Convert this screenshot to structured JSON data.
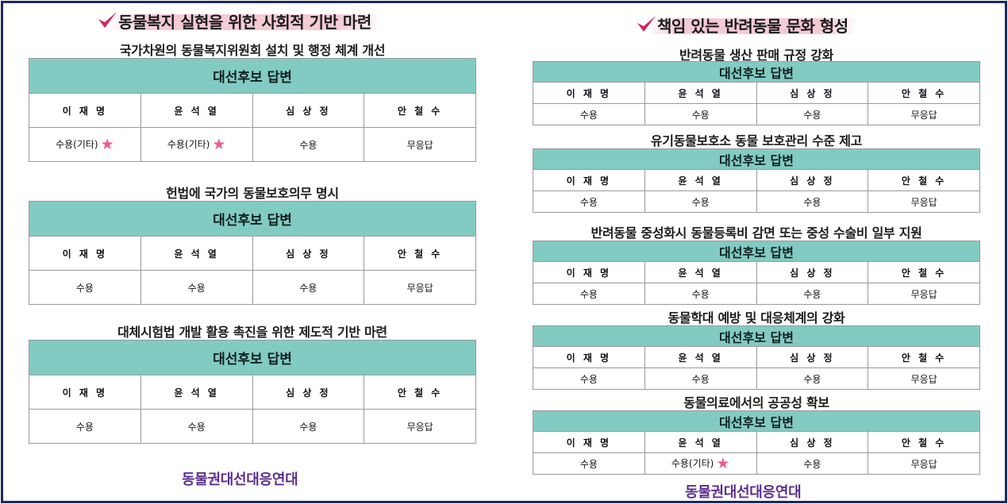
{
  "colors": {
    "header_bg": "#82cbc2",
    "star": "#ef5b8e",
    "org": "#5b2e8e",
    "border": "#1d2a55",
    "check": "#d81e5b"
  },
  "left": {
    "heading": "동물복지 실현을 위한 사회적 기반 마련",
    "sections": [
      {
        "title": "국가차원의 동물복지위원회 설치 및 행정 체계 개선",
        "header": "대선후보 답변",
        "candidates": [
          "이 재 명",
          "윤 석 열",
          "심 상 정",
          "안 철 수"
        ],
        "answers": [
          "수용(기타)",
          "수용(기타)",
          "수용",
          "무응답"
        ],
        "starred": [
          true,
          true,
          false,
          false
        ]
      },
      {
        "title": "헌법에 국가의 동물보호의무 명시",
        "header": "대선후보 답변",
        "candidates": [
          "이 재 명",
          "윤 석 열",
          "심 상 정",
          "안 철 수"
        ],
        "answers": [
          "수용",
          "수용",
          "수용",
          "무응답"
        ],
        "starred": [
          false,
          false,
          false,
          false
        ]
      },
      {
        "title": "대체시험법 개발 활용 촉진을 위한 제도적 기반 마련",
        "header": "대선후보 답변",
        "candidates": [
          "이 재 명",
          "윤 석 열",
          "심 상 정",
          "안 철 수"
        ],
        "answers": [
          "수용",
          "수용",
          "수용",
          "무응답"
        ],
        "starred": [
          false,
          false,
          false,
          false
        ]
      }
    ],
    "org": "동물권대선대응연대"
  },
  "right": {
    "heading": "책임 있는 반려동물 문화 형성",
    "sections": [
      {
        "title": "반려동물 생산 판매 규정 강화",
        "header": "대선후보 답변",
        "candidates": [
          "이 재 명",
          "윤 석 열",
          "심 상 정",
          "안 철 수"
        ],
        "answers": [
          "수용",
          "수용",
          "수용",
          "무응답"
        ],
        "starred": [
          false,
          false,
          false,
          false
        ]
      },
      {
        "title": "유기동물보호소 동물 보호관리 수준 제고",
        "header": "대선후보 답변",
        "candidates": [
          "이 재 명",
          "윤 석 열",
          "심 상 정",
          "안 철 수"
        ],
        "answers": [
          "수용",
          "수용",
          "수용",
          "무응답"
        ],
        "starred": [
          false,
          false,
          false,
          false
        ]
      },
      {
        "title": "반려동물 중성화시 동물등록비 감면 또는 중성 수술비 일부 지원",
        "header": "대선후보 답변",
        "candidates": [
          "이 재 명",
          "윤 석 열",
          "심 상 정",
          "안 철 수"
        ],
        "answers": [
          "수용",
          "수용",
          "수용",
          "무응답"
        ],
        "starred": [
          false,
          false,
          false,
          false
        ]
      },
      {
        "title": "동물학대 예방 및 대응체계의 강화",
        "header": "대선후보 답변",
        "candidates": [
          "이 재 명",
          "윤 석 열",
          "심 상 정",
          "안 철 수"
        ],
        "answers": [
          "수용",
          "수용",
          "수용",
          "무응답"
        ],
        "starred": [
          false,
          false,
          false,
          false
        ]
      },
      {
        "title": "동물의료에서의 공공성 확보",
        "header": "대선후보 답변",
        "candidates": [
          "이 재 명",
          "윤 석 열",
          "심 상 정",
          "안 철 수"
        ],
        "answers": [
          "수용",
          "수용(기타)",
          "수용",
          "무응답"
        ],
        "starred": [
          false,
          true,
          false,
          false
        ]
      }
    ],
    "org": "동물권대선대응연대"
  }
}
